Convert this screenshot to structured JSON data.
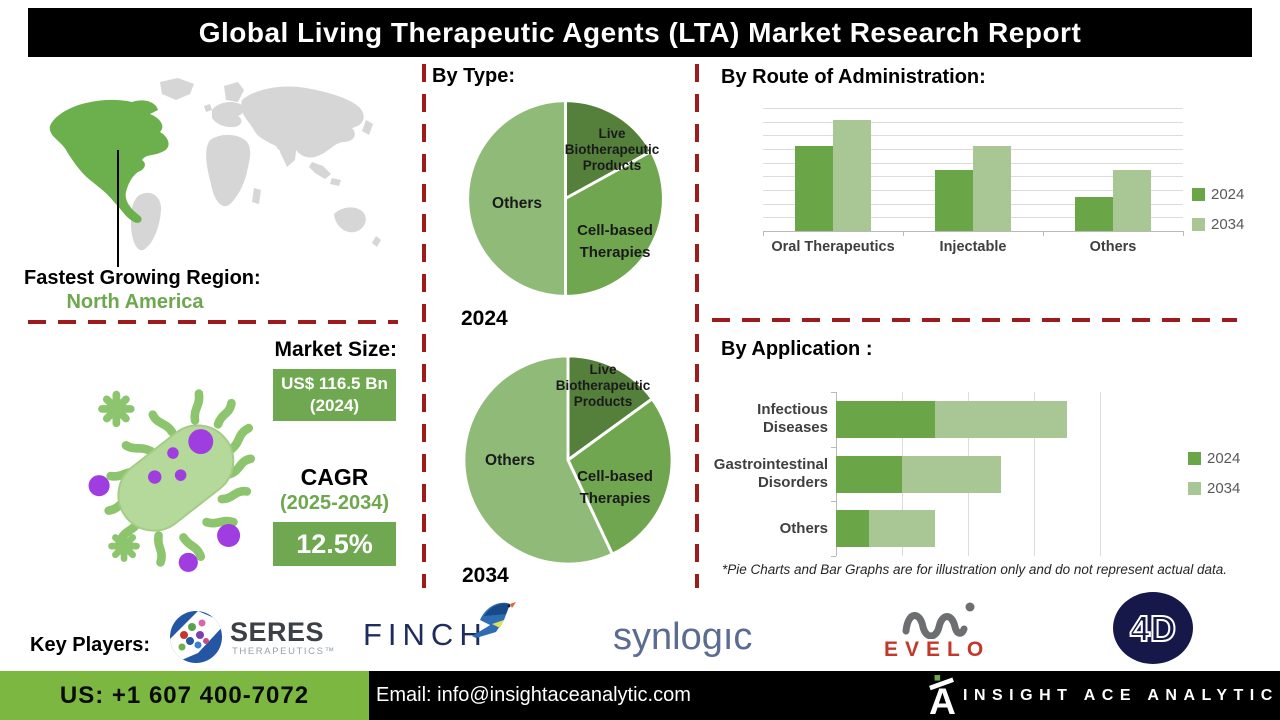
{
  "title": "Global Living Therapeutic Agents (LTA) Market Research Report",
  "region": {
    "label": "Fastest Growing Region:",
    "value": "North America"
  },
  "market": {
    "size_label": "Market Size:",
    "size_value": "US$ 116.5 Bn",
    "size_year": "(2024)",
    "cagr_label": "CAGR",
    "cagr_period": "(2025-2034)",
    "cagr_value": "12.5%"
  },
  "chart_data": [
    {
      "id": "pie2024",
      "type": "pie",
      "title": "By Type:",
      "year_label": "2024",
      "slices": [
        {
          "label": "Live Biotherapeutic Products",
          "percent": 17,
          "color": "#55803C"
        },
        {
          "label": "Cell-based Therapies",
          "percent": 33,
          "color": "#6FA64F"
        },
        {
          "label": "Others",
          "percent": 50,
          "color": "#8FBA77"
        }
      ],
      "note": "illustrative only"
    },
    {
      "id": "pie2034",
      "type": "pie",
      "title": "By Type:",
      "year_label": "2034",
      "slices": [
        {
          "label": "Live Biotherapeutic Products",
          "percent": 15,
          "color": "#55803C"
        },
        {
          "label": "Cell-based Therapies",
          "percent": 28,
          "color": "#6FA64F"
        },
        {
          "label": "Others",
          "percent": 57,
          "color": "#8FBA77"
        }
      ],
      "note": "illustrative only"
    },
    {
      "id": "route",
      "type": "bar",
      "title": "By Route of Administration:",
      "categories": [
        "Oral Therapeutics",
        "Injectable",
        "Others"
      ],
      "series": [
        {
          "name": "2024",
          "color": "#6AA547",
          "values": [
            6.2,
            4.5,
            2.5
          ]
        },
        {
          "name": "2034",
          "color": "#A9C795",
          "values": [
            8.1,
            6.2,
            4.5
          ]
        }
      ],
      "ylim": [
        0,
        9
      ],
      "grid": true,
      "legend_position": "right",
      "note": "illustrative only, no value axis labels shown"
    },
    {
      "id": "application",
      "type": "bar-horizontal-stacked",
      "title": "By Application :",
      "categories": [
        "Infectious Diseases",
        "Gastrointestinal Disorders",
        "Others"
      ],
      "series": [
        {
          "name": "2024",
          "color": "#6AA547",
          "values": [
            3,
            2,
            1
          ]
        },
        {
          "name": "2034",
          "color": "#A9C795",
          "values": [
            4,
            3,
            2
          ]
        }
      ],
      "xlim": [
        0,
        8
      ],
      "grid": true,
      "legend_position": "right",
      "note": "illustrative only, no value axis labels shown"
    }
  ],
  "footnote": "*Pie Charts and Bar Graphs are for illustration only and do not represent actual data.",
  "key_players": {
    "label": "Key Players:",
    "items": [
      {
        "text": "SERES",
        "sub": "THERAPEUTICS™"
      },
      {
        "text": "FINCH"
      },
      {
        "text": "synlogıc"
      },
      {
        "text": "EVELO"
      },
      {
        "text": "4D"
      }
    ]
  },
  "footer": {
    "phone": "US: +1 607 400-7072",
    "email": "Email: info@insightaceanalytic.com",
    "brand": "INSIGHT ACE ANALYTIC"
  },
  "accent_colors": {
    "pie_dark_green": "#55803C",
    "pie_mid_green": "#6FA64F",
    "pie_light_green": "#8FBA77",
    "bar_2024_green": "#6AA547",
    "bar_2034_green": "#A9C795",
    "map_green": "#6CB04E",
    "box_green": "#6FA850",
    "footer_green": "#7CB742",
    "divider_maroon": "#9E1B1B",
    "evelo_red": "#C2392B",
    "navy": "#1E2D5C",
    "purple_dots": "#A03DE0"
  }
}
